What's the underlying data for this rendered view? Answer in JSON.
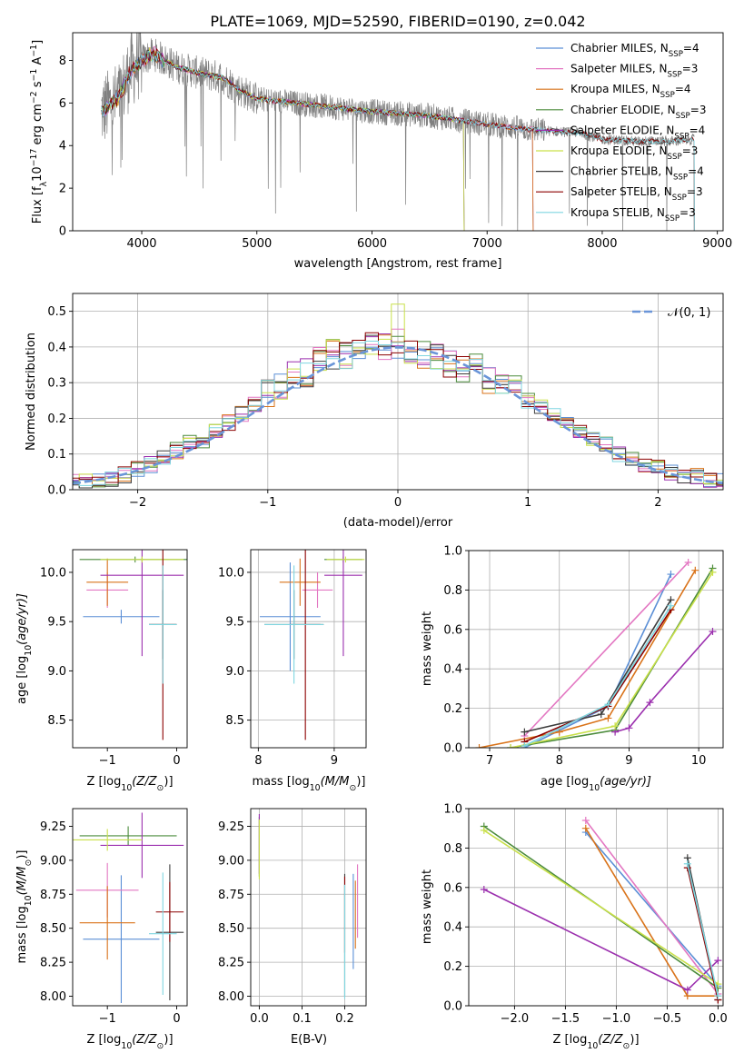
{
  "colors": {
    "chabrier_miles": "#5b8fd6",
    "salpeter_miles": "#e377c2",
    "kroupa_miles": "#d9731a",
    "chabrier_elodie": "#4b8b3b",
    "salpeter_elodie": "#9b2fae",
    "kroupa_elodie": "#c9e04a",
    "chabrier_stelib": "#3c3c3c",
    "salpeter_stelib": "#8b0000",
    "kroupa_stelib": "#7fd6e0",
    "observed": "#808080",
    "normal": "#6a95d8"
  },
  "spectrum": {
    "title": "PLATE=1069, MJD=52590, FIBERID=0190, z=0.042",
    "xlabel": "wavelength [Angstrom, rest frame]",
    "ylabel_main": "Flux [f",
    "ylabel_sub": "λ",
    "ylabel_exp": "10",
    "ylabel_exp_sup": "−17",
    "ylabel_rest": " erg cm",
    "ylabel_cm_sup": "−2",
    "ylabel_s": " s",
    "ylabel_s_sup": "−1",
    "ylabel_A": " A",
    "ylabel_A_sup": "−1",
    "ylabel_close": "]",
    "legend": [
      {
        "text": "Chabrier MILES, N",
        "sub": "SSP",
        "tail": "=4"
      },
      {
        "text": "Salpeter MILES, N",
        "sub": "SSP",
        "tail": "=3"
      },
      {
        "text": "Kroupa MILES, N",
        "sub": "SSP",
        "tail": "=4"
      },
      {
        "text": "Chabrier ELODIE, N",
        "sub": "SSP",
        "tail": "=3"
      },
      {
        "text": "Salpeter ELODIE, N",
        "sub": "SSP",
        "tail": "=4"
      },
      {
        "text": "Kroupa ELODIE, N",
        "sub": "SSP",
        "tail": "=3"
      },
      {
        "text": "Chabrier STELIB, N",
        "sub": "SSP",
        "tail": "=4"
      },
      {
        "text": "Salpeter STELIB, N",
        "sub": "SSP",
        "tail": "=3"
      },
      {
        "text": "Kroupa STELIB, N",
        "sub": "SSP",
        "tail": "=3"
      }
    ]
  },
  "residuals": {
    "xlabel": "(data-model)/error",
    "ylabel": "Normed distribution",
    "legend": "𝒩(0, 1)"
  },
  "panels": {
    "age_vs_Z": {
      "xlabel": "Z [log",
      "xlabel_sub": "10",
      "xlabel_tail": "(Z/Z",
      "xlabel_sun": "⊙",
      "xlabel_end": ")]",
      "ylabel": "age  [log",
      "ylabel_sub": "10",
      "ylabel_tail": "(age/yr)]"
    },
    "age_vs_mass": {
      "xlabel": "mass [log",
      "xlabel_sub": "10",
      "xlabel_tail": "(M/M",
      "xlabel_sun": "⊙",
      "xlabel_end": ")]"
    },
    "weight_vs_age": {
      "xlabel": "age  [log",
      "xlabel_sub": "10",
      "xlabel_tail": "(age/yr)]",
      "ylabel": "mass weight"
    },
    "mass_vs_Z": {
      "xlabel": "Z [log",
      "xlabel_sub": "10",
      "xlabel_tail": "(Z/Z",
      "xlabel_sun": "⊙",
      "xlabel_end": ")]",
      "ylabel": "mass [log",
      "ylabel_sub": "10",
      "ylabel_tail": "(M/M",
      "ylabel_sun": "⊙",
      "ylabel_end": ")]"
    },
    "mass_vs_ebv": {
      "xlabel": "E(B-V)"
    },
    "weight_vs_Z": {
      "xlabel": "Z [log",
      "xlabel_sub": "10",
      "xlabel_tail": "(Z/Z",
      "xlabel_sun": "⊙",
      "xlabel_end": ")]",
      "ylabel": "mass weight"
    }
  },
  "chart_data": [
    {
      "type": "line",
      "title": "PLATE=1069, MJD=52590, FIBERID=0190, z=0.042",
      "xlabel": "wavelength [Angstrom, rest frame]",
      "ylabel": "Flux [fλ10−17 erg cm−2 s−1 A−1]",
      "xlim": [
        3400,
        9050
      ],
      "ylim": [
        0,
        9.3
      ],
      "xticks": [
        4000,
        5000,
        6000,
        7000,
        8000,
        9000
      ],
      "yticks": [
        0,
        2,
        4,
        6,
        8
      ],
      "legend_position": "top-right",
      "observed_trend": {
        "x": [
          3650,
          3800,
          3900,
          4000,
          4100,
          4300,
          4500,
          4700,
          4850,
          5000,
          5500,
          6000,
          6500,
          7000,
          7300,
          7500,
          7800,
          8000,
          8300,
          8600,
          8800
        ],
        "y": [
          5.6,
          6.2,
          7.5,
          8.0,
          8.3,
          7.7,
          7.4,
          7.2,
          6.6,
          6.2,
          5.9,
          5.6,
          5.4,
          5.0,
          4.8,
          4.7,
          4.6,
          4.3,
          4.2,
          4.2,
          4.3
        ]
      },
      "model_series": [
        {
          "name": "Chabrier MILES",
          "x_end": 7400
        },
        {
          "name": "Salpeter MILES",
          "x_end": 7400
        },
        {
          "name": "Kroupa MILES",
          "x_end": 7400
        },
        {
          "name": "Chabrier ELODIE",
          "x_end": 6800
        },
        {
          "name": "Salpeter ELODIE",
          "x_end": 6800
        },
        {
          "name": "Kroupa ELODIE",
          "x_end": 6800
        },
        {
          "name": "Chabrier STELIB",
          "x_end": 8800
        },
        {
          "name": "Salpeter STELIB",
          "x_end": 8800
        },
        {
          "name": "Kroupa STELIB",
          "x_end": 8800
        }
      ]
    },
    {
      "type": "area",
      "xlabel": "(data-model)/error",
      "ylabel": "Normed distribution",
      "xlim": [
        -2.5,
        2.5
      ],
      "ylim": [
        0,
        0.55
      ],
      "xticks": [
        -2,
        -1,
        0,
        1,
        2
      ],
      "yticks": [
        0.0,
        0.1,
        0.2,
        0.3,
        0.4,
        0.5
      ],
      "grid": true,
      "reference_curve": {
        "name": "𝒩(0, 1)",
        "mean": 0,
        "sigma": 1
      },
      "histogram_base": [
        0.02,
        0.02,
        0.03,
        0.03,
        0.04,
        0.06,
        0.07,
        0.09,
        0.11,
        0.13,
        0.14,
        0.16,
        0.19,
        0.21,
        0.24,
        0.27,
        0.29,
        0.32,
        0.33,
        0.36,
        0.38,
        0.38,
        0.39,
        0.4,
        0.4,
        0.4,
        0.39,
        0.38,
        0.37,
        0.35,
        0.34,
        0.34,
        0.31,
        0.3,
        0.28,
        0.25,
        0.23,
        0.21,
        0.19,
        0.16,
        0.14,
        0.13,
        0.1,
        0.09,
        0.07,
        0.06,
        0.05,
        0.04,
        0.04,
        0.03,
        0.03
      ],
      "histogram_x0": -2.55,
      "histogram_bin": 0.1
    },
    {
      "type": "scatter",
      "xlabel": "Z [log10(Z/Z⊙)]",
      "ylabel": "age  [log10(age/yr)]",
      "xlim": [
        -1.5,
        0.15
      ],
      "ylim": [
        8.22,
        10.23
      ],
      "xticks": [
        -1,
        0
      ],
      "yticks": [
        8.5,
        9.0,
        9.5,
        10.0
      ],
      "crosses": [
        {
          "series": "Chabrier MILES",
          "x": -0.8,
          "xerr": 0.55,
          "y": 9.55,
          "yerr": 0.07
        },
        {
          "series": "Salpeter MILES",
          "x": -1.0,
          "xerr": 0.3,
          "y": 9.82,
          "yerr": 0.18
        },
        {
          "series": "Kroupa MILES",
          "x": -1.0,
          "xerr": 0.3,
          "y": 9.9,
          "yerr": 0.24
        },
        {
          "series": "Chabrier ELODIE",
          "x": -0.6,
          "xerr": 0.8,
          "y": 10.13,
          "yerr": 0.03
        },
        {
          "series": "Salpeter ELODIE",
          "x": -0.5,
          "xerr": 0.6,
          "y": 9.97,
          "yerr": 0.82
        },
        {
          "series": "Kroupa ELODIE",
          "x": -0.5,
          "xerr": 0.6,
          "y": 10.13,
          "yerr": 0.03
        },
        {
          "series": "Chabrier STELIB",
          "x": -0.2,
          "xerr": 0.2,
          "y": 9.47,
          "yerr": 0.35
        },
        {
          "series": "Salpeter STELIB",
          "x": -0.2,
          "xerr": 0.2,
          "y": 9.47,
          "yerr": 1.17
        },
        {
          "series": "Kroupa STELIB",
          "x": -0.2,
          "xerr": 0.2,
          "y": 9.47,
          "yerr": 0.6
        }
      ]
    },
    {
      "type": "scatter",
      "xlabel": "mass [log10(M/M⊙)]",
      "xlim": [
        7.9,
        9.42
      ],
      "ylim": [
        8.22,
        10.23
      ],
      "xticks": [
        8,
        9
      ],
      "yticks": [
        8.5,
        9.0,
        9.5,
        10.0
      ],
      "crosses": [
        {
          "series": "Chabrier MILES",
          "x": 8.42,
          "xerr": 0.4,
          "y": 9.55,
          "yerr": 0.55
        },
        {
          "series": "Salpeter MILES",
          "x": 8.78,
          "xerr": 0.2,
          "y": 9.82,
          "yerr": 0.18
        },
        {
          "series": "Kroupa MILES",
          "x": 8.55,
          "xerr": 0.27,
          "y": 9.9,
          "yerr": 0.24
        },
        {
          "series": "Chabrier ELODIE",
          "x": 9.12,
          "xerr": 0.25,
          "y": 10.13,
          "yerr": 0.03
        },
        {
          "series": "Salpeter ELODIE",
          "x": 9.12,
          "xerr": 0.25,
          "y": 9.97,
          "yerr": 0.82
        },
        {
          "series": "Kroupa ELODIE",
          "x": 9.15,
          "xerr": 0.25,
          "y": 10.13,
          "yerr": 0.03
        },
        {
          "series": "Chabrier STELIB",
          "x": 8.47,
          "xerr": 0.39,
          "y": 9.47,
          "yerr": 0.35
        },
        {
          "series": "Salpeter STELIB",
          "x": 8.62,
          "xerr": 0.2,
          "y": 9.47,
          "yerr": 1.17
        },
        {
          "series": "Kroupa STELIB",
          "x": 8.47,
          "xerr": 0.39,
          "y": 9.47,
          "yerr": 0.6
        }
      ]
    },
    {
      "type": "line",
      "xlabel": "age  [log10(age/yr)]",
      "ylabel": "mass weight",
      "xlim": [
        6.7,
        10.35
      ],
      "ylim": [
        0,
        1.0
      ],
      "xticks": [
        7,
        8,
        9,
        10
      ],
      "yticks": [
        0.0,
        0.2,
        0.4,
        0.6,
        0.8,
        1.0
      ],
      "grid": true,
      "series": [
        {
          "name": "Chabrier MILES",
          "x": [
            7.5,
            8.7,
            9.6
          ],
          "y": [
            0.0,
            0.21,
            0.88
          ]
        },
        {
          "name": "Salpeter MILES",
          "x": [
            7.5,
            9.85
          ],
          "y": [
            0.06,
            0.94
          ]
        },
        {
          "name": "Kroupa MILES",
          "x": [
            6.85,
            8.0,
            8.7,
            9.95
          ],
          "y": [
            0.0,
            0.08,
            0.15,
            0.9
          ]
        },
        {
          "name": "Chabrier ELODIE",
          "x": [
            7.3,
            8.8,
            10.2
          ],
          "y": [
            0.0,
            0.09,
            0.91
          ]
        },
        {
          "name": "Salpeter ELODIE",
          "x": [
            8.8,
            9.0,
            9.3,
            10.2
          ],
          "y": [
            0.08,
            0.1,
            0.23,
            0.59
          ]
        },
        {
          "name": "Kroupa ELODIE",
          "x": [
            7.3,
            8.8,
            10.2
          ],
          "y": [
            0.0,
            0.11,
            0.89
          ]
        },
        {
          "name": "Chabrier STELIB",
          "x": [
            7.5,
            8.6,
            9.6
          ],
          "y": [
            0.08,
            0.17,
            0.75
          ]
        },
        {
          "name": "Salpeter STELIB",
          "x": [
            7.5,
            8.7,
            9.6
          ],
          "y": [
            0.03,
            0.21,
            0.7
          ]
        },
        {
          "name": "Kroupa STELIB",
          "x": [
            7.5,
            8.7,
            9.6
          ],
          "y": [
            0.01,
            0.22,
            0.72
          ]
        }
      ]
    },
    {
      "type": "scatter",
      "xlabel": "Z [log10(Z/Z⊙)]",
      "ylabel": "mass [log10(M/M⊙)]",
      "xlim": [
        -1.5,
        0.15
      ],
      "ylim": [
        7.93,
        9.38
      ],
      "xticks": [
        -1,
        0
      ],
      "yticks": [
        8.0,
        8.25,
        8.5,
        8.75,
        9.0,
        9.25
      ],
      "crosses": [
        {
          "series": "Chabrier MILES",
          "x": -0.8,
          "xerr": 0.55,
          "y": 8.42,
          "yerr": 0.47
        },
        {
          "series": "Salpeter MILES",
          "x": -1.0,
          "xerr": 0.45,
          "y": 8.78,
          "yerr": 0.2
        },
        {
          "series": "Kroupa MILES",
          "x": -1.0,
          "xerr": 0.4,
          "y": 8.54,
          "yerr": 0.27
        },
        {
          "series": "Chabrier ELODIE",
          "x": -0.7,
          "xerr": 0.7,
          "y": 9.18,
          "yerr": 0.07
        },
        {
          "series": "Salpeter ELODIE",
          "x": -0.5,
          "xerr": 0.6,
          "y": 9.11,
          "yerr": 0.24
        },
        {
          "series": "Kroupa ELODIE",
          "x": -1.0,
          "xerr": 0.5,
          "y": 9.15,
          "yerr": 0.08
        },
        {
          "series": "Chabrier STELIB",
          "x": -0.1,
          "xerr": 0.2,
          "y": 8.47,
          "yerr": 0.5
        },
        {
          "series": "Salpeter STELIB",
          "x": -0.1,
          "xerr": 0.2,
          "y": 8.62,
          "yerr": 0.22
        },
        {
          "series": "Kroupa STELIB",
          "x": -0.2,
          "xerr": 0.2,
          "y": 8.46,
          "yerr": 0.45
        }
      ]
    },
    {
      "type": "scatter",
      "xlabel": "E(B-V)",
      "xlim": [
        -0.02,
        0.25
      ],
      "ylim": [
        7.93,
        9.38
      ],
      "xticks": [
        0.0,
        0.1,
        0.2
      ],
      "yticks": [
        8.0,
        8.25,
        8.5,
        8.75,
        9.0,
        9.25
      ],
      "crosses": [
        {
          "series": "Chabrier MILES",
          "x": 0.22,
          "xerr": 0,
          "y": 8.55,
          "yerr": 0.35
        },
        {
          "series": "Salpeter MILES",
          "x": 0.23,
          "xerr": 0,
          "y": 8.7,
          "yerr": 0.27
        },
        {
          "series": "Kroupa MILES",
          "x": 0.225,
          "xerr": 0,
          "y": 8.6,
          "yerr": 0.25
        },
        {
          "series": "Chabrier ELODIE",
          "x": 0.0,
          "xerr": 0,
          "y": 9.1,
          "yerr": 0.22
        },
        {
          "series": "Salpeter ELODIE",
          "x": 0.0,
          "xerr": 0,
          "y": 9.12,
          "yerr": 0.22
        },
        {
          "series": "Kroupa ELODIE",
          "x": 0.0,
          "xerr": 0,
          "y": 9.08,
          "yerr": 0.22
        },
        {
          "series": "Chabrier STELIB",
          "x": 0.2,
          "xerr": 0,
          "y": 8.45,
          "yerr": 0.45
        },
        {
          "series": "Salpeter STELIB",
          "x": 0.2,
          "xerr": 0,
          "y": 8.6,
          "yerr": 0.28
        },
        {
          "series": "Kroupa STELIB",
          "x": 0.2,
          "xerr": 0,
          "y": 8.4,
          "yerr": 0.42
        }
      ]
    },
    {
      "type": "line",
      "xlabel": "Z [log10(Z/Z⊙)]",
      "ylabel": "mass weight",
      "xlim": [
        -2.45,
        0.05
      ],
      "ylim": [
        0,
        1.0
      ],
      "xticks": [
        -2.0,
        -1.5,
        -1.0,
        -0.5,
        0.0
      ],
      "yticks": [
        0.0,
        0.2,
        0.4,
        0.6,
        0.8,
        1.0
      ],
      "grid": true,
      "series": [
        {
          "name": "Chabrier MILES",
          "x": [
            -1.3,
            0.0
          ],
          "y": [
            0.88,
            0.1
          ]
        },
        {
          "name": "Salpeter MILES",
          "x": [
            -1.3,
            0.0
          ],
          "y": [
            0.94,
            0.06
          ]
        },
        {
          "name": "Kroupa MILES",
          "x": [
            -1.3,
            -0.3,
            0.0
          ],
          "y": [
            0.9,
            0.05,
            0.05
          ]
        },
        {
          "name": "Chabrier ELODIE",
          "x": [
            -2.3,
            0.0
          ],
          "y": [
            0.91,
            0.09
          ]
        },
        {
          "name": "Salpeter ELODIE",
          "x": [
            -2.3,
            -0.3,
            0.0
          ],
          "y": [
            0.59,
            0.08,
            0.23
          ]
        },
        {
          "name": "Kroupa ELODIE",
          "x": [
            -2.3,
            0.0
          ],
          "y": [
            0.89,
            0.11
          ]
        },
        {
          "name": "Chabrier STELIB",
          "x": [
            -0.3,
            0.0
          ],
          "y": [
            0.75,
            0.03
          ]
        },
        {
          "name": "Salpeter STELIB",
          "x": [
            -0.3,
            0.0
          ],
          "y": [
            0.7,
            0.03
          ]
        },
        {
          "name": "Kroupa STELIB",
          "x": [
            -0.3,
            0.0
          ],
          "y": [
            0.72,
            0.05
          ]
        }
      ]
    }
  ]
}
